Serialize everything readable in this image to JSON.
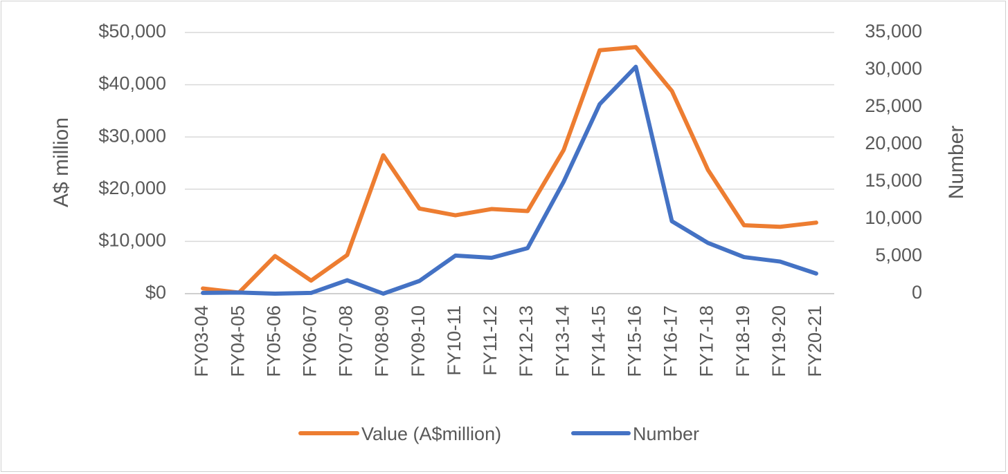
{
  "chart_data": {
    "type": "line",
    "title": "",
    "xlabel": "",
    "ylabel": "A$ million",
    "y2label": "Number",
    "ylim": [
      0,
      50000
    ],
    "y2lim": [
      0,
      35000
    ],
    "grid": true,
    "legend_position": "bottom",
    "y_ticks": [
      "$0",
      "$10,000",
      "$20,000",
      "$30,000",
      "$40,000",
      "$50,000"
    ],
    "y2_ticks": [
      "0",
      "5,000",
      "10,000",
      "15,000",
      "20,000",
      "25,000",
      "30,000",
      "35,000"
    ],
    "categories": [
      "FY03-04",
      "FY04-05",
      "FY05-06",
      "FY06-07",
      "FY07-08",
      "FY08-09",
      "FY09-10",
      "FY10-11",
      "FY11-12",
      "FY12-13",
      "FY13-14",
      "FY14-15",
      "FY15-16",
      "FY16-17",
      "FY17-18",
      "FY18-19",
      "FY19-20",
      "FY20-21"
    ],
    "series": [
      {
        "name": "Value (A$million)",
        "axis": "left",
        "color": "#ED7D31",
        "values": [
          1000,
          200,
          7200,
          2500,
          7400,
          26500,
          16300,
          15000,
          16200,
          15800,
          27500,
          46600,
          47200,
          38800,
          23700,
          13100,
          12800,
          13600
        ]
      },
      {
        "name": "Number",
        "axis": "right",
        "color": "#4472C4",
        "values": [
          100,
          150,
          0,
          100,
          1800,
          0,
          1700,
          5100,
          4800,
          6100,
          15000,
          25400,
          30400,
          9700,
          6800,
          4900,
          4300,
          2700
        ]
      }
    ]
  }
}
